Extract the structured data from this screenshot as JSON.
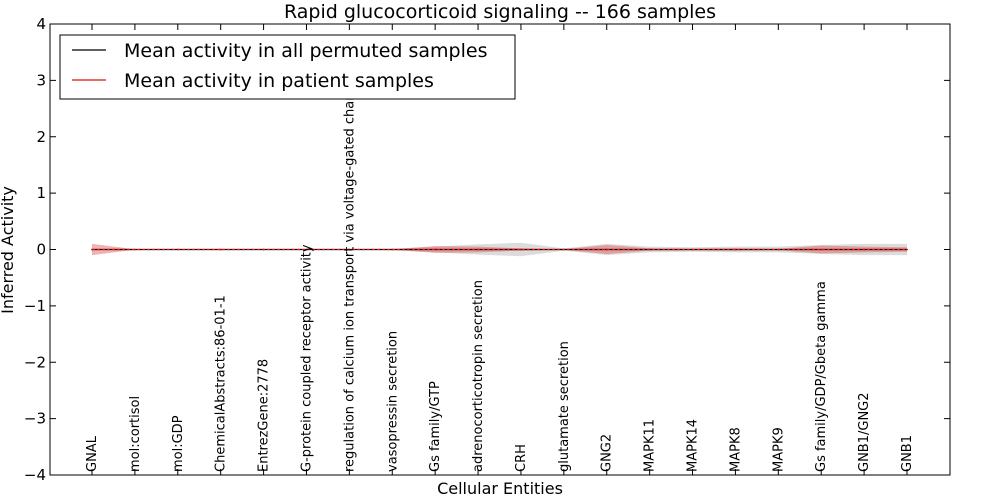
{
  "chart_data": {
    "type": "line",
    "title": "Rapid glucocorticoid signaling -- 166 samples",
    "xlabel": "Cellular Entities",
    "ylabel": "Inferred Activity",
    "ylim": [
      -4,
      4
    ],
    "yticks": [
      "4",
      "3",
      "2",
      "1",
      "0",
      "−1",
      "−2",
      "−3",
      "−4"
    ],
    "ytick_values": [
      4,
      3,
      2,
      1,
      0,
      -1,
      -2,
      -3,
      -4
    ],
    "categories": [
      "GNAL",
      "mol:cortisol",
      "mol:GDP",
      "ChemicalAbstracts:86-01-1",
      "EntrezGene:2778",
      "G-protein coupled receptor activity",
      "regulation of calcium ion transport via voltage-gated channel",
      "vasopressin secretion",
      "Gs family/GTP",
      "adrenocorticotropin secretion",
      "CRH",
      "glutamate secretion",
      "GNG2",
      "MAPK11",
      "MAPK14",
      "MAPK8",
      "MAPK9",
      "Gs family/GDP/Gbeta gamma",
      "GNB1/GNG2",
      "GNB1"
    ],
    "series": [
      {
        "name": "Mean activity in all permuted samples",
        "color": "#000000",
        "values": [
          0,
          0,
          0,
          0,
          0,
          0,
          0,
          0,
          0,
          0,
          0,
          0,
          0,
          0,
          0,
          0,
          0,
          0,
          0,
          0
        ],
        "band": [
          0.01,
          0.005,
          0.005,
          0.005,
          0.005,
          0.005,
          0.005,
          0.01,
          0.05,
          0.09,
          0.12,
          0.02,
          0.1,
          0.05,
          0.04,
          0.05,
          0.05,
          0.08,
          0.1,
          0.1
        ],
        "band_color": "#9a9a9a"
      },
      {
        "name": "Mean activity in patient samples",
        "color": "#dd1111",
        "values": [
          0,
          0,
          0,
          0,
          0,
          0,
          0,
          0,
          0,
          0,
          0,
          0,
          0,
          0,
          0,
          0,
          0,
          0,
          0,
          0
        ],
        "band": [
          0.1,
          0.005,
          0.005,
          0.005,
          0.005,
          0.005,
          0.005,
          0.005,
          0.06,
          0.05,
          0.02,
          0.005,
          0.08,
          0.02,
          0.01,
          0.02,
          0.01,
          0.07,
          0.05,
          0.04
        ],
        "band_color": "#e05555"
      }
    ],
    "legend": {
      "location": "top-left",
      "entries": [
        "Mean activity in all permuted samples",
        "Mean activity in patient samples"
      ]
    },
    "grid": false
  }
}
